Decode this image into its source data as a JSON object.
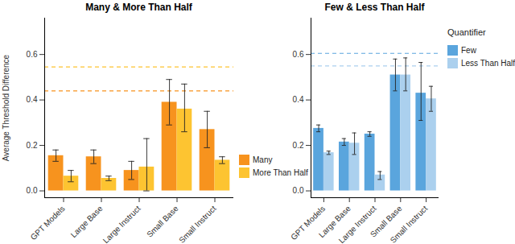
{
  "chart_data": [
    {
      "type": "bar",
      "title": "Many & More Than Half",
      "categories": [
        "GPT Models",
        "Large Base",
        "Large Instruct",
        "Small Base",
        "Small Instruct"
      ],
      "ylabel": "Average Threshold Difference",
      "ylim": [
        -0.03,
        0.76
      ],
      "yticks": [
        {
          "value": 0,
          "label": "0.0"
        },
        0.2,
        0.4,
        0.6
      ],
      "series": [
        {
          "name": "Many",
          "color": "#F7931E",
          "values": [
            0.155,
            0.15,
            0.09,
            0.39,
            0.27
          ],
          "error_low": [
            0.13,
            0.12,
            0.05,
            0.29,
            0.19
          ],
          "error_high": [
            0.18,
            0.18,
            0.13,
            0.49,
            0.35
          ],
          "reference_value": 0.44
        },
        {
          "name": "More Than Half",
          "color": "#FDC431",
          "values": [
            0.065,
            0.055,
            0.105,
            0.36,
            0.135
          ],
          "error_low": [
            0.04,
            0.045,
            0.0,
            0.26,
            0.12
          ],
          "error_high": [
            0.09,
            0.065,
            0.23,
            0.47,
            0.15
          ],
          "reference_value": 0.545
        }
      ]
    },
    {
      "type": "bar",
      "title": "Few & Less Than Half",
      "categories": [
        "GPT Models",
        "Large Base",
        "Large Instruct",
        "Small Base",
        "Small Instruct"
      ],
      "legend_title": "Quantifier",
      "ylim": [
        -0.03,
        0.76
      ],
      "yticks": [
        {
          "value": 0,
          "label": "0.0"
        },
        0.2,
        0.4,
        0.6
      ],
      "series": [
        {
          "name": "Few",
          "color": "#5AA5DD",
          "values": [
            0.275,
            0.215,
            0.25,
            0.51,
            0.43
          ],
          "error_low": [
            0.26,
            0.2,
            0.24,
            0.44,
            0.31
          ],
          "error_high": [
            0.29,
            0.23,
            0.26,
            0.58,
            0.565
          ],
          "reference_value": 0.605
        },
        {
          "name": "Less Than Half",
          "color": "#ABD0EE",
          "values": [
            0.168,
            0.21,
            0.07,
            0.51,
            0.405
          ],
          "error_low": [
            0.16,
            0.16,
            0.05,
            0.44,
            0.35
          ],
          "error_high": [
            0.175,
            0.255,
            0.085,
            0.585,
            0.46
          ],
          "reference_value": 0.55
        }
      ]
    }
  ]
}
